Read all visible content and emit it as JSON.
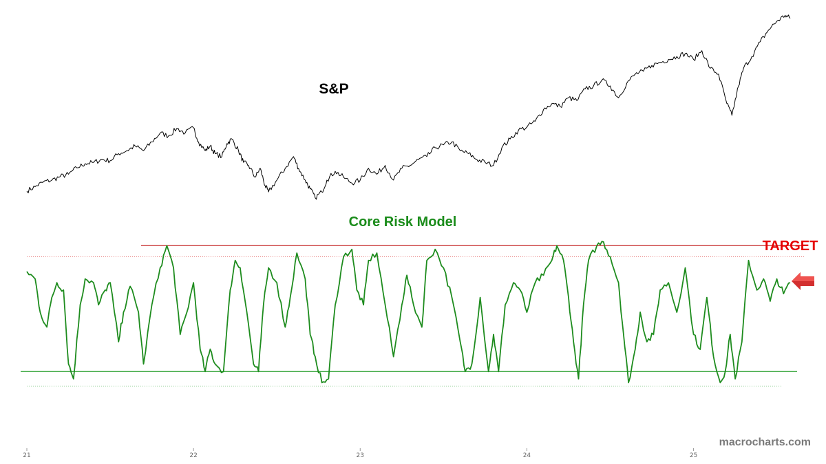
{
  "chart_data": [
    {
      "type": "line",
      "title": "S&P",
      "x_ticks": [
        "21",
        "22",
        "23",
        "24",
        "25"
      ],
      "series": [
        {
          "name": "S&P",
          "color": "#000000",
          "points": [
            [
              21.0,
              3714
            ],
            [
              21.05,
              3790
            ],
            [
              21.1,
              3870
            ],
            [
              21.15,
              3900
            ],
            [
              21.2,
              3960
            ],
            [
              21.25,
              4000
            ],
            [
              21.3,
              4110
            ],
            [
              21.35,
              4180
            ],
            [
              21.4,
              4200
            ],
            [
              21.45,
              4250
            ],
            [
              21.5,
              4230
            ],
            [
              21.55,
              4350
            ],
            [
              21.6,
              4400
            ],
            [
              21.65,
              4480
            ],
            [
              21.7,
              4400
            ],
            [
              21.75,
              4550
            ],
            [
              21.8,
              4700
            ],
            [
              21.85,
              4650
            ],
            [
              21.9,
              4780
            ],
            [
              21.95,
              4700
            ],
            [
              22.0,
              4790
            ],
            [
              22.03,
              4550
            ],
            [
              22.07,
              4400
            ],
            [
              22.1,
              4480
            ],
            [
              22.13,
              4350
            ],
            [
              22.17,
              4300
            ],
            [
              22.2,
              4520
            ],
            [
              22.23,
              4600
            ],
            [
              22.27,
              4400
            ],
            [
              22.3,
              4200
            ],
            [
              22.33,
              4150
            ],
            [
              22.37,
              3950
            ],
            [
              22.4,
              4100
            ],
            [
              22.43,
              3800
            ],
            [
              22.45,
              3700
            ],
            [
              22.5,
              3900
            ],
            [
              22.55,
              4100
            ],
            [
              22.6,
              4300
            ],
            [
              22.63,
              4100
            ],
            [
              22.67,
              3900
            ],
            [
              22.7,
              3750
            ],
            [
              22.73,
              3600
            ],
            [
              22.77,
              3700
            ],
            [
              22.8,
              3900
            ],
            [
              22.85,
              4050
            ],
            [
              22.9,
              3950
            ],
            [
              22.95,
              3850
            ],
            [
              23.0,
              3900
            ],
            [
              23.05,
              4100
            ],
            [
              23.1,
              4000
            ],
            [
              23.15,
              4150
            ],
            [
              23.2,
              3900
            ],
            [
              23.25,
              4100
            ],
            [
              23.3,
              4150
            ],
            [
              23.35,
              4250
            ],
            [
              23.4,
              4300
            ],
            [
              23.45,
              4450
            ],
            [
              23.5,
              4500
            ],
            [
              23.55,
              4550
            ],
            [
              23.6,
              4400
            ],
            [
              23.65,
              4350
            ],
            [
              23.7,
              4250
            ],
            [
              23.75,
              4200
            ],
            [
              23.8,
              4150
            ],
            [
              23.85,
              4450
            ],
            [
              23.9,
              4600
            ],
            [
              23.95,
              4750
            ],
            [
              24.0,
              4800
            ],
            [
              24.05,
              4900
            ],
            [
              24.1,
              5100
            ],
            [
              24.15,
              5200
            ],
            [
              24.2,
              5150
            ],
            [
              24.25,
              5300
            ],
            [
              24.3,
              5250
            ],
            [
              24.35,
              5450
            ],
            [
              24.4,
              5500
            ],
            [
              24.45,
              5600
            ],
            [
              24.5,
              5500
            ],
            [
              24.55,
              5300
            ],
            [
              24.6,
              5550
            ],
            [
              24.65,
              5700
            ],
            [
              24.7,
              5750
            ],
            [
              24.75,
              5850
            ],
            [
              24.8,
              5900
            ],
            [
              24.85,
              5950
            ],
            [
              24.9,
              6000
            ],
            [
              24.95,
              6050
            ],
            [
              25.0,
              5950
            ],
            [
              25.05,
              6100
            ],
            [
              25.1,
              5800
            ],
            [
              25.15,
              5700
            ],
            [
              25.2,
              5200
            ],
            [
              25.23,
              5000
            ],
            [
              25.27,
              5500
            ],
            [
              25.3,
              5800
            ],
            [
              25.35,
              6000
            ],
            [
              25.4,
              6250
            ],
            [
              25.45,
              6450
            ],
            [
              25.5,
              6600
            ],
            [
              25.55,
              6700
            ],
            [
              25.58,
              6650
            ]
          ]
        }
      ]
    },
    {
      "type": "line",
      "title": "Core Risk Model",
      "annotation": "TARGET",
      "x_ticks": [
        "21",
        "22",
        "23",
        "24",
        "25"
      ],
      "ylim": [
        -1.3,
        1.3
      ],
      "reference_lines": [
        {
          "value": 1.0,
          "color": "#c62828",
          "style": "solid"
        },
        {
          "value": 0.85,
          "color": "#e57373",
          "style": "dotted"
        },
        {
          "value": -0.7,
          "color": "#4caf50",
          "style": "solid"
        },
        {
          "value": -0.9,
          "color": "#81c784",
          "style": "dotted"
        }
      ],
      "series": [
        {
          "name": "Core Risk Model",
          "color": "#1e8c1e",
          "points": [
            [
              21.0,
              0.65
            ],
            [
              21.05,
              0.55
            ],
            [
              21.08,
              0.1
            ],
            [
              21.12,
              -0.1
            ],
            [
              21.15,
              0.3
            ],
            [
              21.18,
              0.5
            ],
            [
              21.22,
              0.4
            ],
            [
              21.25,
              -0.6
            ],
            [
              21.28,
              -0.8
            ],
            [
              21.32,
              0.2
            ],
            [
              21.35,
              0.55
            ],
            [
              21.4,
              0.5
            ],
            [
              21.43,
              0.2
            ],
            [
              21.47,
              0.4
            ],
            [
              21.5,
              0.5
            ],
            [
              21.55,
              -0.3
            ],
            [
              21.58,
              0.1
            ],
            [
              21.62,
              0.45
            ],
            [
              21.67,
              0.1
            ],
            [
              21.7,
              -0.6
            ],
            [
              21.75,
              0.2
            ],
            [
              21.8,
              0.7
            ],
            [
              21.84,
              1.0
            ],
            [
              21.88,
              0.7
            ],
            [
              21.92,
              -0.2
            ],
            [
              21.96,
              0.1
            ],
            [
              22.0,
              0.5
            ],
            [
              22.04,
              -0.4
            ],
            [
              22.07,
              -0.7
            ],
            [
              22.1,
              -0.4
            ],
            [
              22.13,
              -0.6
            ],
            [
              22.18,
              -0.7
            ],
            [
              22.22,
              0.4
            ],
            [
              22.25,
              0.8
            ],
            [
              22.28,
              0.7
            ],
            [
              22.32,
              0.1
            ],
            [
              22.36,
              -0.6
            ],
            [
              22.39,
              -0.7
            ],
            [
              22.42,
              0.2
            ],
            [
              22.45,
              0.7
            ],
            [
              22.5,
              0.5
            ],
            [
              22.55,
              -0.1
            ],
            [
              22.58,
              0.3
            ],
            [
              22.62,
              0.9
            ],
            [
              22.67,
              0.55
            ],
            [
              22.7,
              -0.2
            ],
            [
              22.73,
              -0.5
            ],
            [
              22.77,
              -0.85
            ],
            [
              22.81,
              -0.8
            ],
            [
              22.85,
              0.2
            ],
            [
              22.9,
              0.85
            ],
            [
              22.95,
              0.95
            ],
            [
              22.98,
              0.4
            ],
            [
              23.02,
              0.2
            ],
            [
              23.05,
              0.8
            ],
            [
              23.1,
              0.9
            ],
            [
              23.15,
              0.2
            ],
            [
              23.2,
              -0.5
            ],
            [
              23.25,
              0.2
            ],
            [
              23.28,
              0.6
            ],
            [
              23.32,
              0.2
            ],
            [
              23.37,
              -0.1
            ],
            [
              23.4,
              0.8
            ],
            [
              23.45,
              0.95
            ],
            [
              23.5,
              0.7
            ],
            [
              23.55,
              0.3
            ],
            [
              23.6,
              -0.3
            ],
            [
              23.63,
              -0.7
            ],
            [
              23.67,
              -0.6
            ],
            [
              23.72,
              0.3
            ],
            [
              23.77,
              -0.7
            ],
            [
              23.8,
              -0.2
            ],
            [
              23.83,
              -0.7
            ],
            [
              23.87,
              0.2
            ],
            [
              23.92,
              0.5
            ],
            [
              23.96,
              0.4
            ],
            [
              24.0,
              0.1
            ],
            [
              24.05,
              0.5
            ],
            [
              24.1,
              0.6
            ],
            [
              24.15,
              0.8
            ],
            [
              24.18,
              1.0
            ],
            [
              24.22,
              0.8
            ],
            [
              24.25,
              0.3
            ],
            [
              24.28,
              -0.3
            ],
            [
              24.31,
              -0.8
            ],
            [
              24.34,
              0.2
            ],
            [
              24.37,
              0.8
            ],
            [
              24.42,
              1.0
            ],
            [
              24.46,
              1.05
            ],
            [
              24.5,
              0.85
            ],
            [
              24.55,
              0.5
            ],
            [
              24.58,
              -0.2
            ],
            [
              24.61,
              -0.85
            ],
            [
              24.65,
              -0.4
            ],
            [
              24.68,
              0.1
            ],
            [
              24.72,
              -0.3
            ],
            [
              24.76,
              -0.2
            ],
            [
              24.8,
              0.4
            ],
            [
              24.85,
              0.5
            ],
            [
              24.9,
              0.1
            ],
            [
              24.95,
              0.7
            ],
            [
              25.0,
              -0.2
            ],
            [
              25.04,
              -0.4
            ],
            [
              25.08,
              0.3
            ],
            [
              25.12,
              -0.5
            ],
            [
              25.16,
              -0.85
            ],
            [
              25.19,
              -0.7
            ],
            [
              25.22,
              -0.2
            ],
            [
              25.25,
              -0.8
            ],
            [
              25.29,
              -0.3
            ],
            [
              25.33,
              0.8
            ],
            [
              25.38,
              0.4
            ],
            [
              25.42,
              0.55
            ],
            [
              25.46,
              0.25
            ],
            [
              25.5,
              0.55
            ],
            [
              25.54,
              0.35
            ],
            [
              25.58,
              0.5
            ]
          ]
        }
      ]
    }
  ],
  "labels": {
    "sp": "S&P",
    "model": "Core Risk Model",
    "target": "TARGET",
    "watermark": "macrocharts.com"
  }
}
